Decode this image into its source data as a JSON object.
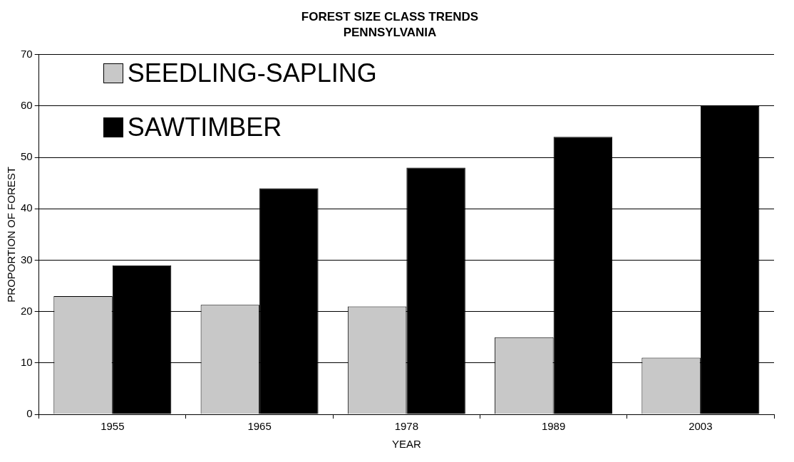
{
  "chart_data": {
    "type": "bar",
    "title": "FOREST SIZE CLASS TRENDS",
    "subtitle": "PENNSYLVANIA",
    "xlabel": "YEAR",
    "ylabel": "PROPORTION OF FOREST",
    "categories": [
      "1955",
      "1965",
      "1978",
      "1989",
      "2003"
    ],
    "series": [
      {
        "name": "SEEDLING-SAPLING",
        "color": "#c8c8c8",
        "values": [
          23,
          21.3,
          21,
          15,
          11
        ]
      },
      {
        "name": "SAWTIMBER",
        "color": "#000000",
        "values": [
          29,
          44,
          48,
          54,
          60
        ]
      }
    ],
    "ylim": [
      0,
      70
    ],
    "yticks": [
      0,
      10,
      20,
      30,
      40,
      50,
      60,
      70
    ],
    "grid": "y",
    "legend": "top left"
  }
}
